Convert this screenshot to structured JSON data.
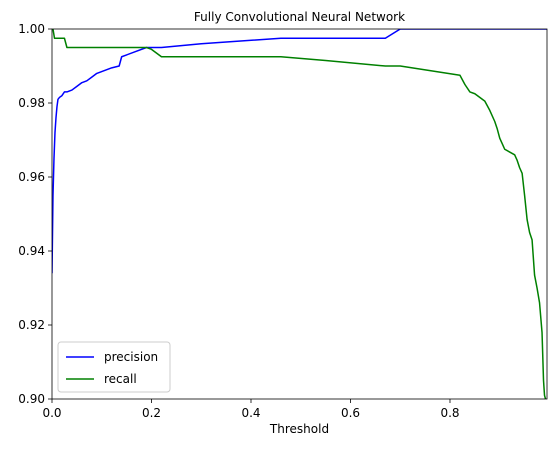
{
  "chart_data": {
    "type": "line",
    "title": "Fully Convolutional Neural Network",
    "xlabel": "Threshold",
    "ylabel": "",
    "xlim": [
      0.0,
      0.995
    ],
    "ylim": [
      0.9,
      1.0
    ],
    "xticks": [
      "0.0",
      "0.2",
      "0.4",
      "0.6",
      "0.8"
    ],
    "xtick_values": [
      0.0,
      0.2,
      0.4,
      0.6,
      0.8
    ],
    "yticks": [
      "0.90",
      "0.92",
      "0.94",
      "0.96",
      "0.98",
      "1.00"
    ],
    "ytick_values": [
      0.9,
      0.92,
      0.94,
      0.96,
      0.98,
      1.0
    ],
    "grid": false,
    "legend_position": "lower-left",
    "series": [
      {
        "name": "precision",
        "color": "#0000ff",
        "x": [
          0.0,
          0.002,
          0.004,
          0.006,
          0.008,
          0.01,
          0.012,
          0.015,
          0.02,
          0.025,
          0.03,
          0.04,
          0.05,
          0.06,
          0.07,
          0.08,
          0.09,
          0.1,
          0.12,
          0.135,
          0.14,
          0.15,
          0.17,
          0.19,
          0.22,
          0.3,
          0.46,
          0.67,
          0.7,
          0.995
        ],
        "y": [
          0.934,
          0.955,
          0.965,
          0.972,
          0.976,
          0.979,
          0.981,
          0.9815,
          0.982,
          0.983,
          0.983,
          0.9835,
          0.9845,
          0.9855,
          0.986,
          0.987,
          0.988,
          0.9885,
          0.9895,
          0.99,
          0.9925,
          0.993,
          0.994,
          0.995,
          0.995,
          0.996,
          0.9975,
          0.9975,
          1.0,
          1.0
        ]
      },
      {
        "name": "recall",
        "color": "#008000",
        "x": [
          0.0,
          0.002,
          0.005,
          0.008,
          0.012,
          0.018,
          0.025,
          0.03,
          0.05,
          0.1,
          0.15,
          0.19,
          0.2,
          0.22,
          0.3,
          0.46,
          0.55,
          0.67,
          0.7,
          0.82,
          0.83,
          0.84,
          0.85,
          0.87,
          0.88,
          0.89,
          0.895,
          0.9,
          0.905,
          0.91,
          0.93,
          0.935,
          0.94,
          0.945,
          0.95,
          0.955,
          0.96,
          0.965,
          0.97,
          0.975,
          0.98,
          0.985,
          0.988,
          0.99,
          0.992,
          0.993
        ],
        "y": [
          1.0,
          1.0,
          0.9975,
          0.9975,
          0.9975,
          0.9975,
          0.9975,
          0.995,
          0.995,
          0.995,
          0.995,
          0.995,
          0.9945,
          0.9925,
          0.9925,
          0.9925,
          0.9915,
          0.99,
          0.99,
          0.9875,
          0.985,
          0.983,
          0.9825,
          0.9805,
          0.978,
          0.975,
          0.973,
          0.9705,
          0.969,
          0.9675,
          0.966,
          0.9645,
          0.9625,
          0.961,
          0.955,
          0.9485,
          0.945,
          0.943,
          0.9335,
          0.93,
          0.926,
          0.918,
          0.905,
          0.901,
          0.9,
          0.9
        ]
      }
    ]
  }
}
